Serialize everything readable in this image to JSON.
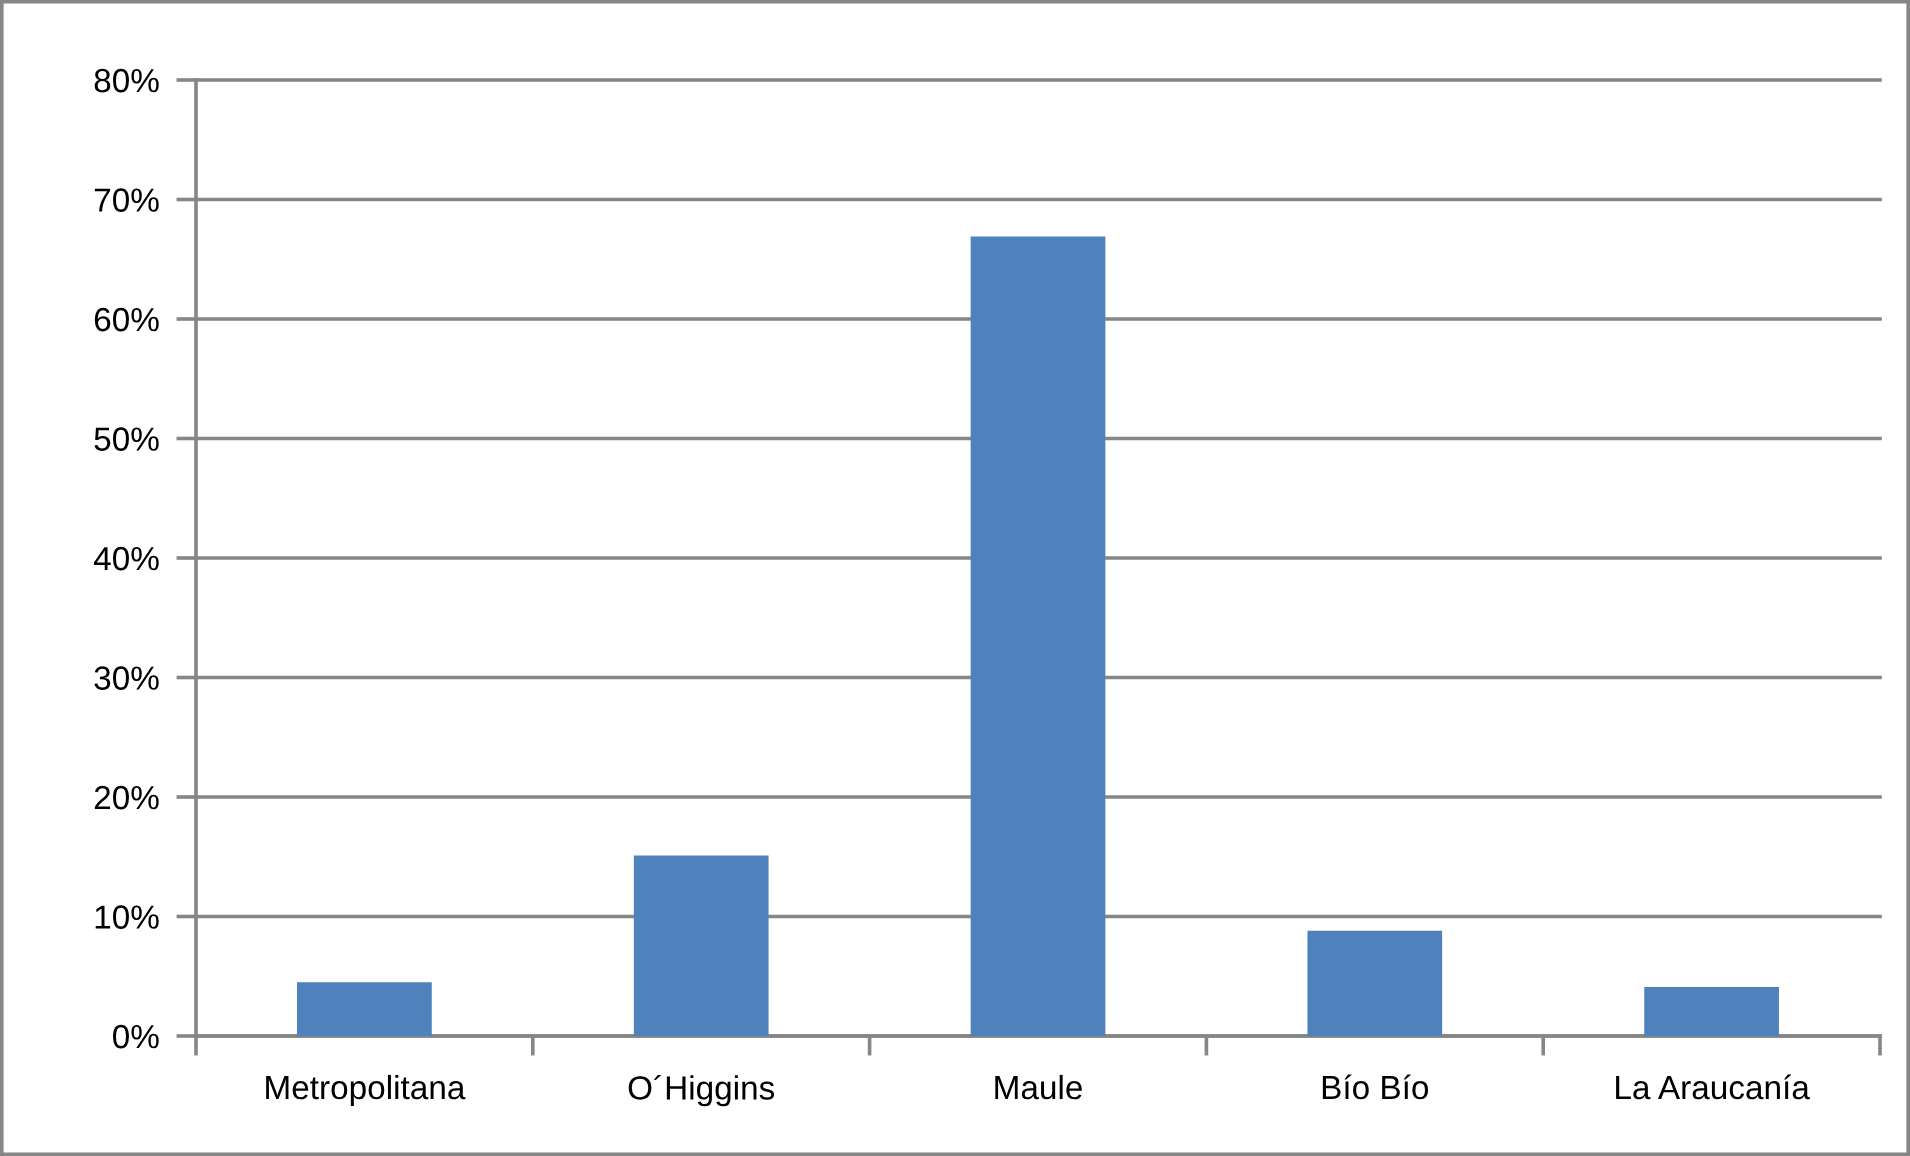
{
  "chart_data": {
    "type": "bar",
    "categories": [
      "Metropolitana",
      "O´Higgins",
      "Maule",
      "Bío Bío",
      "La Araucanía"
    ],
    "values": [
      4.5,
      15.1,
      66.9,
      8.8,
      4.1
    ],
    "color": "#4f81bd",
    "ylim": [
      0,
      80
    ],
    "yticks": [
      {
        "value": 0,
        "label": "0%"
      },
      {
        "value": 10,
        "label": "10%"
      },
      {
        "value": 20,
        "label": "20%"
      },
      {
        "value": 30,
        "label": "30%"
      },
      {
        "value": 40,
        "label": "40%"
      },
      {
        "value": 50,
        "label": "50%"
      },
      {
        "value": 60,
        "label": "60%"
      },
      {
        "value": 70,
        "label": "70%"
      },
      {
        "value": 80,
        "label": "80%"
      }
    ],
    "grid": "y",
    "legend": false
  }
}
